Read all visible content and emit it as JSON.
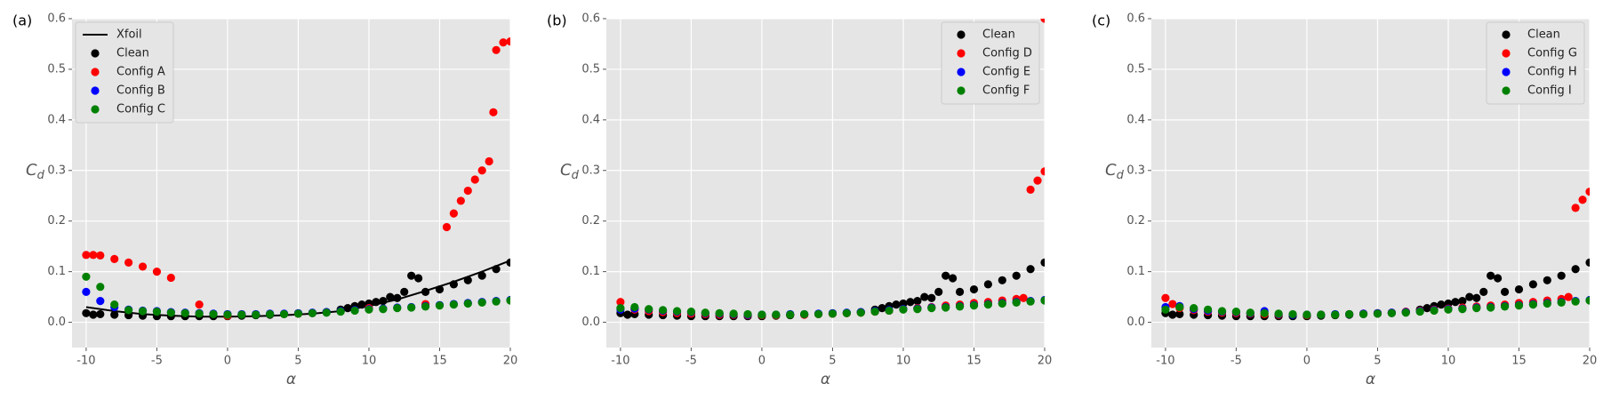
{
  "chart_data": [
    {
      "type": "scatter",
      "panel_label": "(a)",
      "xlabel": "α",
      "ylabel": "C",
      "ylabel_sub": "d",
      "xlim": [
        -11,
        20
      ],
      "ylim": [
        -0.05,
        0.6
      ],
      "xticks": [
        -10,
        -5,
        0,
        5,
        10,
        15,
        20
      ],
      "yticks": [
        {
          "value": 0,
          "label": "0.0"
        },
        0.1,
        0.2,
        0.3,
        0.4,
        0.5,
        0.6
      ],
      "grid": true,
      "legend_loc": "upper left",
      "series": [
        {
          "name": "Xfoil",
          "color": "#000000",
          "style": "line",
          "x": [
            -10,
            -8,
            -6,
            -4,
            -2,
            0,
            2,
            4,
            6,
            8,
            10,
            12,
            14,
            16,
            18,
            20
          ],
          "values": [
            0.03,
            0.022,
            0.016,
            0.013,
            0.011,
            0.011,
            0.012,
            0.014,
            0.017,
            0.022,
            0.032,
            0.045,
            0.062,
            0.08,
            0.1,
            0.122
          ]
        },
        {
          "name": "Clean",
          "color": "#000000",
          "style": "dot",
          "x": [
            -10,
            -9.5,
            -9,
            -8,
            -7,
            -6,
            -5,
            -4,
            -3,
            -2,
            -1,
            0,
            1,
            2,
            3,
            4,
            5,
            6,
            7,
            8,
            8.5,
            9,
            9.5,
            10,
            10.5,
            11,
            11.5,
            12,
            12.5,
            13,
            13.5,
            14,
            15,
            16,
            17,
            18,
            19,
            20
          ],
          "values": [
            0.018,
            0.015,
            0.016,
            0.015,
            0.014,
            0.013,
            0.012,
            0.012,
            0.012,
            0.012,
            0.012,
            0.012,
            0.013,
            0.014,
            0.015,
            0.016,
            0.017,
            0.018,
            0.02,
            0.025,
            0.028,
            0.032,
            0.035,
            0.037,
            0.04,
            0.042,
            0.05,
            0.048,
            0.06,
            0.092,
            0.087,
            0.06,
            0.065,
            0.075,
            0.083,
            0.092,
            0.105,
            0.118
          ]
        },
        {
          "name": "Config A",
          "color": "#ff0000",
          "style": "dot",
          "x": [
            -10,
            -9.5,
            -9,
            -8,
            -7,
            -6,
            -5,
            -4,
            -2,
            0,
            5,
            10,
            14,
            15.5,
            16,
            16.5,
            17,
            17.5,
            18,
            18.5,
            18.8,
            19,
            19.5,
            20
          ],
          "values": [
            0.133,
            0.133,
            0.132,
            0.125,
            0.118,
            0.11,
            0.1,
            0.088,
            0.035,
            0.013,
            0.017,
            0.028,
            0.036,
            0.188,
            0.215,
            0.24,
            0.26,
            0.282,
            0.3,
            0.318,
            0.415,
            0.538,
            0.553,
            0.555
          ]
        },
        {
          "name": "Config B",
          "color": "#0000ff",
          "style": "dot",
          "x": [
            -10,
            -9,
            -8,
            -7,
            -6,
            -5,
            -4,
            -3,
            -2,
            -1,
            0,
            1,
            2,
            3,
            4,
            5,
            6,
            7,
            8,
            9,
            10,
            11,
            12,
            13,
            14,
            15,
            16,
            17,
            18,
            19,
            20
          ],
          "values": [
            0.06,
            0.042,
            0.03,
            0.025,
            0.023,
            0.022,
            0.02,
            0.019,
            0.018,
            0.017,
            0.016,
            0.016,
            0.016,
            0.017,
            0.017,
            0.018,
            0.019,
            0.02,
            0.022,
            0.024,
            0.026,
            0.027,
            0.029,
            0.03,
            0.032,
            0.034,
            0.036,
            0.038,
            0.04,
            0.042,
            0.044
          ]
        },
        {
          "name": "Config C",
          "color": "#008000",
          "style": "dot",
          "x": [
            -10,
            -9,
            -8,
            -7,
            -6,
            -5,
            -4,
            -3,
            -2,
            -1,
            0,
            1,
            2,
            3,
            4,
            5,
            6,
            7,
            8,
            9,
            10,
            11,
            12,
            13,
            14,
            15,
            16,
            17,
            18,
            19,
            20
          ],
          "values": [
            0.09,
            0.07,
            0.035,
            0.024,
            0.022,
            0.021,
            0.019,
            0.018,
            0.017,
            0.016,
            0.015,
            0.015,
            0.015,
            0.016,
            0.016,
            0.017,
            0.018,
            0.019,
            0.021,
            0.023,
            0.025,
            0.026,
            0.028,
            0.029,
            0.031,
            0.033,
            0.035,
            0.037,
            0.039,
            0.041,
            0.043
          ]
        }
      ]
    },
    {
      "type": "scatter",
      "panel_label": "(b)",
      "xlabel": "α",
      "ylabel": "C",
      "ylabel_sub": "d",
      "xlim": [
        -11,
        20
      ],
      "ylim": [
        -0.05,
        0.6
      ],
      "xticks": [
        -10,
        -5,
        0,
        5,
        10,
        15,
        20
      ],
      "yticks": [
        {
          "value": 0,
          "label": "0.0"
        },
        0.1,
        0.2,
        0.3,
        0.4,
        0.5,
        0.6
      ],
      "grid": true,
      "legend_loc": "upper right",
      "series": [
        {
          "name": "Clean",
          "color": "#000000",
          "style": "dot",
          "x": [
            -10,
            -9.5,
            -9,
            -8,
            -7,
            -6,
            -5,
            -4,
            -3,
            -2,
            -1,
            0,
            1,
            2,
            3,
            4,
            5,
            6,
            7,
            8,
            8.5,
            9,
            9.5,
            10,
            10.5,
            11,
            11.5,
            12,
            12.5,
            13,
            13.5,
            14,
            15,
            16,
            17,
            18,
            19,
            20
          ],
          "values": [
            0.018,
            0.015,
            0.016,
            0.015,
            0.014,
            0.013,
            0.012,
            0.012,
            0.012,
            0.012,
            0.012,
            0.012,
            0.013,
            0.014,
            0.015,
            0.016,
            0.017,
            0.018,
            0.02,
            0.025,
            0.028,
            0.032,
            0.035,
            0.037,
            0.04,
            0.042,
            0.05,
            0.048,
            0.06,
            0.092,
            0.087,
            0.06,
            0.065,
            0.075,
            0.083,
            0.092,
            0.105,
            0.118
          ]
        },
        {
          "name": "Config D",
          "color": "#ff0000",
          "style": "dot",
          "x": [
            -10,
            -9,
            -8,
            -7,
            -6,
            -5,
            -4,
            -3,
            -2,
            -1,
            0,
            1,
            2,
            3,
            4,
            5,
            6,
            7,
            8,
            9,
            10,
            11,
            12,
            13,
            14,
            15,
            16,
            17,
            18,
            18.5,
            19,
            19.5,
            20,
            20
          ],
          "values": [
            0.04,
            0.025,
            0.022,
            0.02,
            0.018,
            0.017,
            0.016,
            0.015,
            0.015,
            0.014,
            0.014,
            0.014,
            0.015,
            0.015,
            0.016,
            0.017,
            0.018,
            0.019,
            0.021,
            0.023,
            0.026,
            0.028,
            0.03,
            0.033,
            0.035,
            0.038,
            0.04,
            0.043,
            0.046,
            0.048,
            0.262,
            0.28,
            0.298,
            0.6
          ]
        },
        {
          "name": "Config E",
          "color": "#0000ff",
          "style": "dot",
          "x": [
            -10,
            -9,
            -8,
            -7,
            -6,
            -5,
            -4,
            -3,
            -2,
            -1,
            0,
            1,
            2,
            3,
            4,
            5,
            6,
            7,
            8,
            9,
            10,
            11,
            12,
            13,
            14,
            15,
            16,
            17,
            18,
            19,
            20
          ],
          "values": [
            0.025,
            0.027,
            0.025,
            0.023,
            0.021,
            0.02,
            0.018,
            0.017,
            0.016,
            0.015,
            0.015,
            0.015,
            0.016,
            0.016,
            0.017,
            0.018,
            0.019,
            0.02,
            0.022,
            0.024,
            0.026,
            0.027,
            0.029,
            0.03,
            0.032,
            0.034,
            0.036,
            0.038,
            0.04,
            0.042,
            0.044
          ]
        },
        {
          "name": "Config F",
          "color": "#008000",
          "style": "dot",
          "x": [
            -10,
            -9,
            -8,
            -7,
            -6,
            -5,
            -4,
            -3,
            -2,
            -1,
            0,
            1,
            2,
            3,
            4,
            5,
            6,
            7,
            8,
            9,
            10,
            11,
            12,
            13,
            14,
            15,
            16,
            17,
            18,
            19,
            20
          ],
          "values": [
            0.028,
            0.03,
            0.026,
            0.024,
            0.022,
            0.021,
            0.019,
            0.018,
            0.017,
            0.016,
            0.015,
            0.015,
            0.015,
            0.016,
            0.016,
            0.017,
            0.018,
            0.019,
            0.021,
            0.023,
            0.025,
            0.026,
            0.028,
            0.029,
            0.031,
            0.033,
            0.035,
            0.037,
            0.039,
            0.041,
            0.043
          ]
        }
      ]
    },
    {
      "type": "scatter",
      "panel_label": "(c)",
      "xlabel": "α",
      "ylabel": "C",
      "ylabel_sub": "d",
      "xlim": [
        -11,
        20
      ],
      "ylim": [
        -0.05,
        0.6
      ],
      "xticks": [
        -10,
        -5,
        0,
        5,
        10,
        15,
        20
      ],
      "yticks": [
        {
          "value": 0,
          "label": "0.0"
        },
        0.1,
        0.2,
        0.3,
        0.4,
        0.5,
        0.6
      ],
      "grid": true,
      "legend_loc": "upper right",
      "series": [
        {
          "name": "Clean",
          "color": "#000000",
          "style": "dot",
          "x": [
            -10,
            -9.5,
            -9,
            -8,
            -7,
            -6,
            -5,
            -4,
            -3,
            -2,
            -1,
            0,
            1,
            2,
            3,
            4,
            5,
            6,
            7,
            8,
            8.5,
            9,
            9.5,
            10,
            10.5,
            11,
            11.5,
            12,
            12.5,
            13,
            13.5,
            14,
            15,
            16,
            17,
            18,
            19,
            20
          ],
          "values": [
            0.018,
            0.015,
            0.016,
            0.015,
            0.014,
            0.013,
            0.012,
            0.012,
            0.012,
            0.012,
            0.012,
            0.012,
            0.013,
            0.014,
            0.015,
            0.016,
            0.017,
            0.018,
            0.02,
            0.025,
            0.028,
            0.032,
            0.035,
            0.037,
            0.04,
            0.042,
            0.05,
            0.048,
            0.06,
            0.092,
            0.087,
            0.06,
            0.065,
            0.075,
            0.083,
            0.092,
            0.105,
            0.118
          ]
        },
        {
          "name": "Config G",
          "color": "#ff0000",
          "style": "dot",
          "x": [
            -10,
            -9.5,
            -9,
            -8,
            -7,
            -6,
            -5,
            -4,
            -3,
            -2,
            -1,
            0,
            1,
            2,
            3,
            4,
            5,
            6,
            7,
            8,
            9,
            10,
            11,
            12,
            13,
            14,
            15,
            16,
            17,
            18,
            18.5,
            19,
            19.5,
            20
          ],
          "values": [
            0.048,
            0.036,
            0.028,
            0.024,
            0.021,
            0.019,
            0.018,
            0.017,
            0.016,
            0.015,
            0.015,
            0.014,
            0.015,
            0.015,
            0.016,
            0.017,
            0.018,
            0.019,
            0.021,
            0.023,
            0.025,
            0.027,
            0.029,
            0.031,
            0.033,
            0.035,
            0.038,
            0.04,
            0.043,
            0.046,
            0.05,
            0.226,
            0.242,
            0.258
          ]
        },
        {
          "name": "Config H",
          "color": "#0000ff",
          "style": "dot",
          "x": [
            -10,
            -9,
            -8,
            -7,
            -6,
            -5,
            -4,
            -3,
            -2,
            -1,
            0,
            1,
            2,
            3,
            4,
            5,
            6,
            7,
            8,
            9,
            10,
            11,
            12,
            13,
            14,
            15,
            16,
            17,
            18,
            19,
            20
          ],
          "values": [
            0.03,
            0.032,
            0.026,
            0.023,
            0.021,
            0.02,
            0.018,
            0.022,
            0.016,
            0.015,
            0.015,
            0.015,
            0.016,
            0.016,
            0.017,
            0.018,
            0.019,
            0.02,
            0.022,
            0.024,
            0.026,
            0.027,
            0.029,
            0.03,
            0.032,
            0.034,
            0.036,
            0.038,
            0.04,
            0.042,
            0.044
          ]
        },
        {
          "name": "Config I",
          "color": "#008000",
          "style": "dot",
          "x": [
            -10,
            -9,
            -8,
            -7,
            -6,
            -5,
            -4,
            -3,
            -2,
            -1,
            0,
            1,
            2,
            3,
            4,
            5,
            6,
            7,
            8,
            9,
            10,
            11,
            12,
            13,
            14,
            15,
            16,
            17,
            18,
            19,
            20
          ],
          "values": [
            0.025,
            0.03,
            0.028,
            0.025,
            0.022,
            0.021,
            0.019,
            0.018,
            0.017,
            0.016,
            0.015,
            0.015,
            0.015,
            0.016,
            0.016,
            0.017,
            0.018,
            0.019,
            0.021,
            0.023,
            0.025,
            0.026,
            0.028,
            0.029,
            0.031,
            0.033,
            0.035,
            0.037,
            0.039,
            0.041,
            0.043
          ]
        }
      ]
    }
  ]
}
